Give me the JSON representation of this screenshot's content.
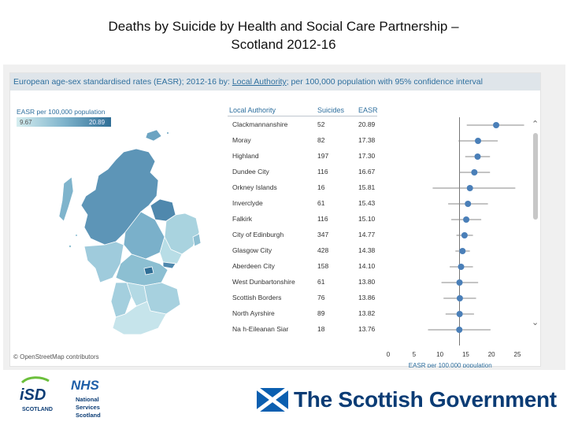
{
  "slide": {
    "title_line1": "Deaths by Suicide by Health and Social Care Partnership –",
    "title_line2": "Scotland 2012-16"
  },
  "header": {
    "part1": "European age-sex standardised rates (EASR); 2012-16 by: ",
    "link": "Local Authority",
    "part2": "; per 100,000 population with 95% confidence interval"
  },
  "legend": {
    "title": "EASR per 100,000 population",
    "min": "9.67",
    "max": "20.89"
  },
  "table": {
    "headers": {
      "area": "Local Authority",
      "suicides": "Suicides",
      "easr": "EASR"
    },
    "rows": [
      {
        "area": "Clackmannanshire",
        "suicides": "52",
        "easr": "20.89"
      },
      {
        "area": "Moray",
        "suicides": "82",
        "easr": "17.38"
      },
      {
        "area": "Highland",
        "suicides": "197",
        "easr": "17.30"
      },
      {
        "area": "Dundee City",
        "suicides": "116",
        "easr": "16.67"
      },
      {
        "area": "Orkney Islands",
        "suicides": "16",
        "easr": "15.81"
      },
      {
        "area": "Inverclyde",
        "suicides": "61",
        "easr": "15.43"
      },
      {
        "area": "Falkirk",
        "suicides": "116",
        "easr": "15.10"
      },
      {
        "area": "City of Edinburgh",
        "suicides": "347",
        "easr": "14.77"
      },
      {
        "area": "Glasgow City",
        "suicides": "428",
        "easr": "14.38"
      },
      {
        "area": "Aberdeen City",
        "suicides": "158",
        "easr": "14.10"
      },
      {
        "area": "West Dunbartonshire",
        "suicides": "61",
        "easr": "13.80"
      },
      {
        "area": "Scottish Borders",
        "suicides": "76",
        "easr": "13.86"
      },
      {
        "area": "North Ayrshire",
        "suicides": "89",
        "easr": "13.82"
      },
      {
        "area": "Na h-Eileanan Siar",
        "suicides": "18",
        "easr": "13.76"
      }
    ]
  },
  "chart_data": {
    "type": "scatter",
    "xlabel": "EASR per 100,000 population",
    "xlim": [
      0,
      25
    ],
    "xticks": [
      "0",
      "5",
      "10",
      "15",
      "20",
      "25"
    ],
    "reference_value": 13.8,
    "series": [
      {
        "values": [
          20.89,
          17.38,
          17.3,
          16.67,
          15.81,
          15.43,
          15.1,
          14.77,
          14.38,
          14.1,
          13.8,
          13.86,
          13.82,
          13.76
        ],
        "ci_low": [
          15.2,
          13.6,
          14.9,
          13.8,
          8.6,
          11.6,
          12.2,
          13.2,
          13.0,
          11.9,
          10.3,
          10.7,
          11.1,
          7.7
        ],
        "ci_high": [
          26.3,
          21.2,
          19.7,
          19.7,
          24.6,
          19.3,
          18.0,
          16.4,
          15.8,
          16.4,
          17.4,
          17.0,
          16.6,
          19.8
        ]
      }
    ],
    "colors": {
      "point": "#4a7fb8",
      "ci": "#8a8a8a",
      "reference": "#555555"
    }
  },
  "map": {
    "attribution": "© OpenStreetMap contributors"
  },
  "logos": {
    "isd_text": "iSD",
    "isd_sub": "SCOTLAND",
    "nhs_text": "NHS",
    "nhs_sub1": "National",
    "nhs_sub2": "Services",
    "nhs_sub3": "Scotland",
    "gov_text": "The Scottish Government"
  },
  "icons": {
    "scroll_up": "chevron-up-icon",
    "scroll_down": "chevron-down-icon"
  }
}
